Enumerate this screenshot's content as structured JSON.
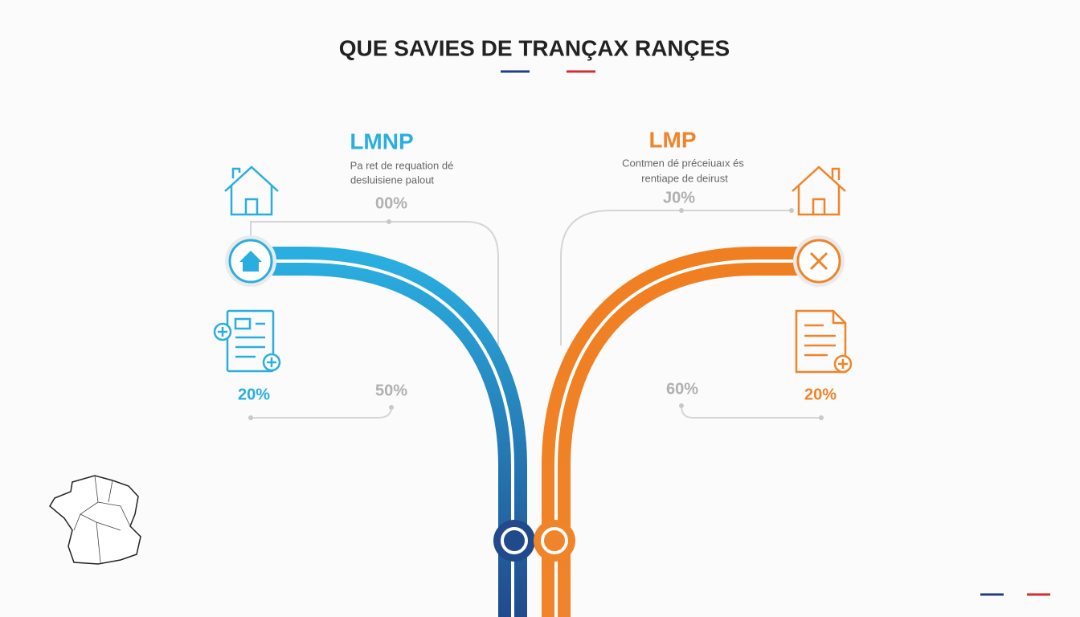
{
  "header": {
    "title": "QUE SAVIES DE TRANÇAX RANÇES"
  },
  "left": {
    "label": "LMNP",
    "description": [
      "Pa ret de requation dé",
      "desluisiene palout"
    ],
    "stats": {
      "top": "00%",
      "middle": "50%",
      "icon": "20%"
    }
  },
  "right": {
    "label": "LMP",
    "description": [
      "Contmen dé préceiuaıx és",
      "rentiape de deirust"
    ],
    "stats": {
      "top": "J0%",
      "middle": "60%",
      "icon": "20%"
    }
  }
}
